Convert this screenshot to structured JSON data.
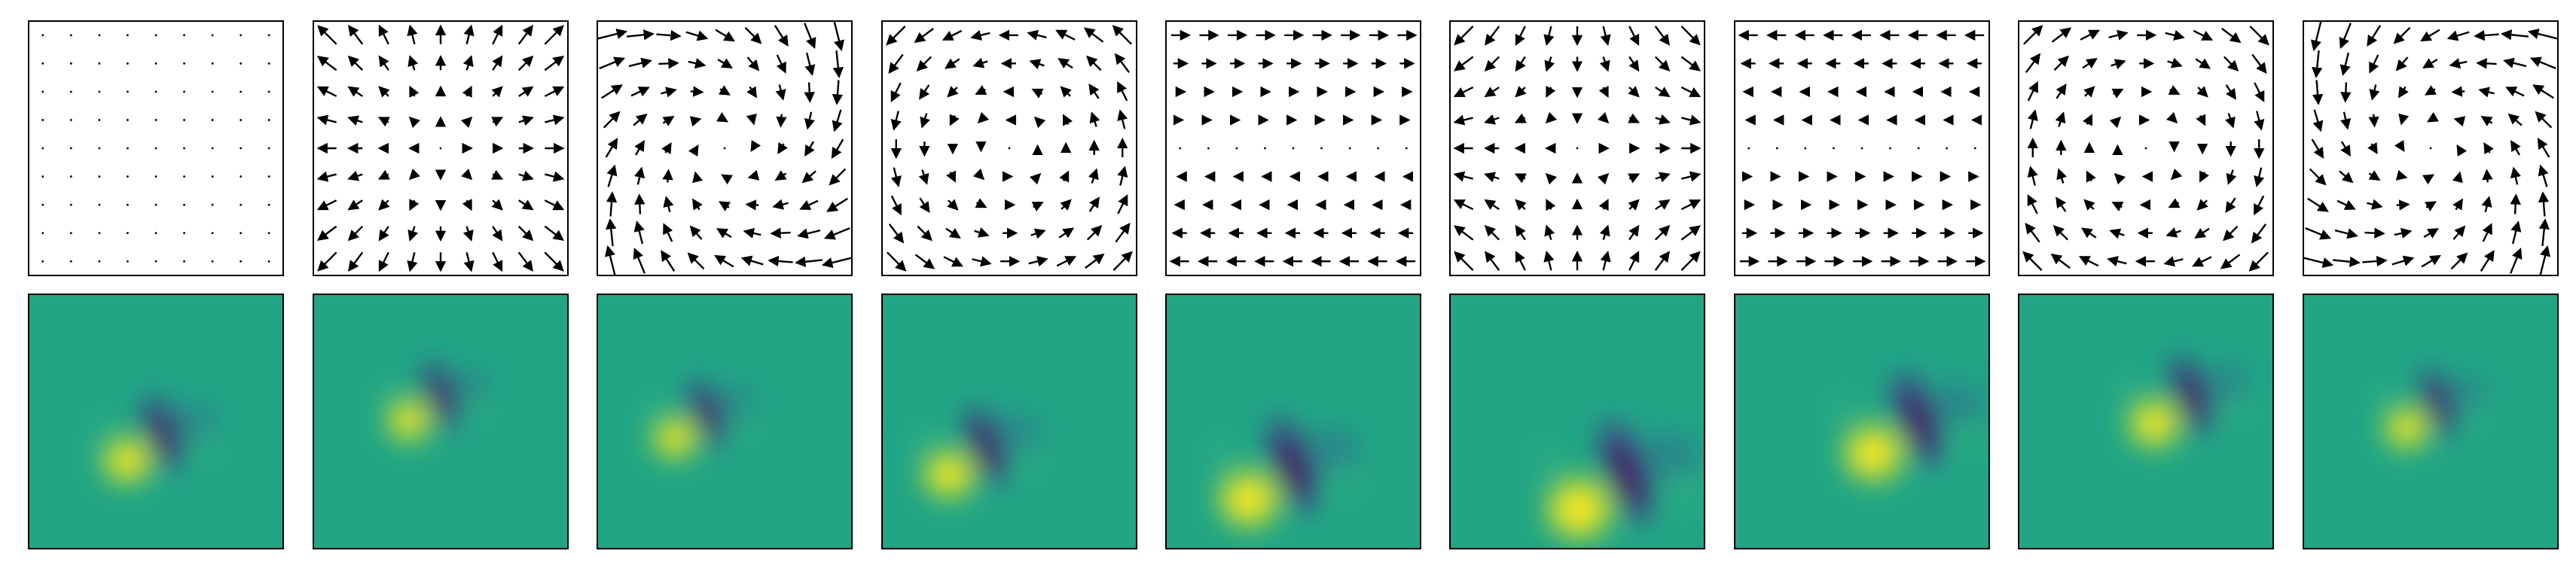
{
  "chart_data": {
    "type": "quiver-and-heatmap-grid",
    "grid": {
      "rows": 2,
      "cols": 9
    },
    "axes": {
      "ticks": false,
      "grid": false,
      "title": "",
      "xlabel": "",
      "ylabel": ""
    },
    "colormap": "viridis",
    "colors": {
      "frame": "#000000",
      "arrow": "#000000",
      "background": "#ffffff",
      "heatmap_base": "#21a585"
    },
    "vector_fields": [
      {
        "index": 1,
        "kind": "zero",
        "description_units": "scale factors",
        "a": 0.0,
        "b": 0.0,
        "c": 0.0,
        "d": 0.0
      },
      {
        "index": 2,
        "kind": "radial-outward",
        "a": 1.0,
        "b": 0.0,
        "c": 0.0,
        "d": 1.0
      },
      {
        "index": 3,
        "kind": "spiral-cw-inward",
        "a": -0.6,
        "b": 1.0,
        "c": -1.0,
        "d": -0.6
      },
      {
        "index": 4,
        "kind": "rotation-ccw",
        "a": 0.0,
        "b": -1.0,
        "c": 1.0,
        "d": 0.0
      },
      {
        "index": 5,
        "kind": "shear-y-to-x",
        "a": 0.0,
        "b": 1.0,
        "c": 0.0,
        "d": 0.0
      },
      {
        "index": 6,
        "kind": "saddle",
        "a": 1.0,
        "b": 0.0,
        "c": 0.0,
        "d": -1.0
      },
      {
        "index": 7,
        "kind": "shear-y-to-x-neg",
        "a": 0.0,
        "b": -1.0,
        "c": 0.0,
        "d": 0.0
      },
      {
        "index": 8,
        "kind": "rotation-cw",
        "a": 0.0,
        "b": 1.0,
        "c": -1.0,
        "d": 0.0
      },
      {
        "index": 9,
        "kind": "spiral-ccw-inward",
        "a": -0.6,
        "b": -1.0,
        "c": 1.0,
        "d": -0.6
      }
    ],
    "heatmaps": [
      {
        "index": 1,
        "cx": 0.47,
        "cy": 0.57,
        "scale": 1.0,
        "angle": 35
      },
      {
        "index": 2,
        "cx": 0.45,
        "cy": 0.42,
        "scale": 0.9,
        "angle": 35
      },
      {
        "index": 3,
        "cx": 0.38,
        "cy": 0.49,
        "scale": 0.9,
        "angle": 35
      },
      {
        "index": 4,
        "cx": 0.35,
        "cy": 0.62,
        "scale": 1.05,
        "angle": 35
      },
      {
        "index": 5,
        "cx": 0.43,
        "cy": 0.7,
        "scale": 1.25,
        "angle": 35
      },
      {
        "index": 6,
        "cx": 0.62,
        "cy": 0.73,
        "scale": 1.35,
        "angle": 35
      },
      {
        "index": 7,
        "cx": 0.65,
        "cy": 0.52,
        "scale": 1.25,
        "angle": 35
      },
      {
        "index": 8,
        "cx": 0.62,
        "cy": 0.42,
        "scale": 1.05,
        "angle": 35
      },
      {
        "index": 9,
        "cx": 0.48,
        "cy": 0.45,
        "scale": 0.9,
        "angle": 35
      }
    ]
  }
}
